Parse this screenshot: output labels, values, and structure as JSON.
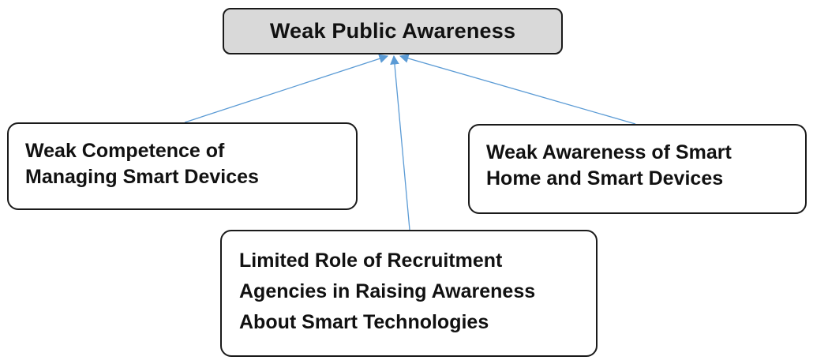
{
  "diagram": {
    "root": {
      "label": "Weak Public Awareness"
    },
    "causes": {
      "left": {
        "lines": [
          "Weak Competence of",
          "Managing Smart Devices"
        ]
      },
      "right": {
        "lines": [
          "Weak Awareness of Smart",
          "Home and Smart Devices"
        ]
      },
      "bottom": {
        "lines": [
          "Limited Role of Recruitment",
          "Agencies in Raising Awareness",
          "About Smart Technologies"
        ]
      }
    },
    "colors": {
      "arrow": "#5b9bd5",
      "root_fill": "#d9d9d9",
      "border": "#1a1a1a"
    }
  }
}
